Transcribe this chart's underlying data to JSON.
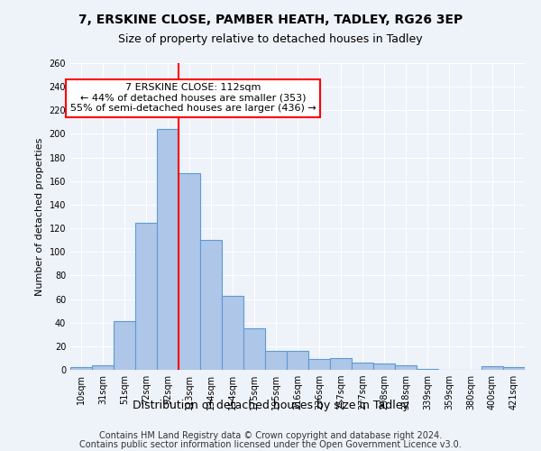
{
  "title1": "7, ERSKINE CLOSE, PAMBER HEATH, TADLEY, RG26 3EP",
  "title2": "Size of property relative to detached houses in Tadley",
  "xlabel": "Distribution of detached houses by size in Tadley",
  "ylabel": "Number of detached properties",
  "categories": [
    "10sqm",
    "31sqm",
    "51sqm",
    "72sqm",
    "92sqm",
    "113sqm",
    "134sqm",
    "154sqm",
    "175sqm",
    "195sqm",
    "216sqm",
    "236sqm",
    "257sqm",
    "277sqm",
    "298sqm",
    "318sqm",
    "339sqm",
    "359sqm",
    "380sqm",
    "400sqm",
    "421sqm"
  ],
  "values": [
    2,
    4,
    41,
    125,
    204,
    167,
    110,
    63,
    35,
    16,
    16,
    9,
    10,
    6,
    5,
    4,
    1,
    0,
    0,
    3,
    2
  ],
  "bar_color": "#aec6e8",
  "bar_edge_color": "#5b9bd5",
  "annotation_text": "7 ERSKINE CLOSE: 112sqm\n← 44% of detached houses are smaller (353)\n55% of semi-detached houses are larger (436) →",
  "annotation_box_color": "white",
  "annotation_box_edge_color": "red",
  "vline_color": "red",
  "vline_x_index": 4.5,
  "footer1": "Contains HM Land Registry data © Crown copyright and database right 2024.",
  "footer2": "Contains public sector information licensed under the Open Government Licence v3.0.",
  "background_color": "#eef2f9",
  "grid_color": "#ffffff",
  "ylim": [
    0,
    260
  ],
  "title1_fontsize": 10,
  "title2_fontsize": 9,
  "ylabel_fontsize": 8,
  "xlabel_fontsize": 9,
  "tick_fontsize": 7,
  "annotation_fontsize": 8,
  "footer_fontsize": 7
}
